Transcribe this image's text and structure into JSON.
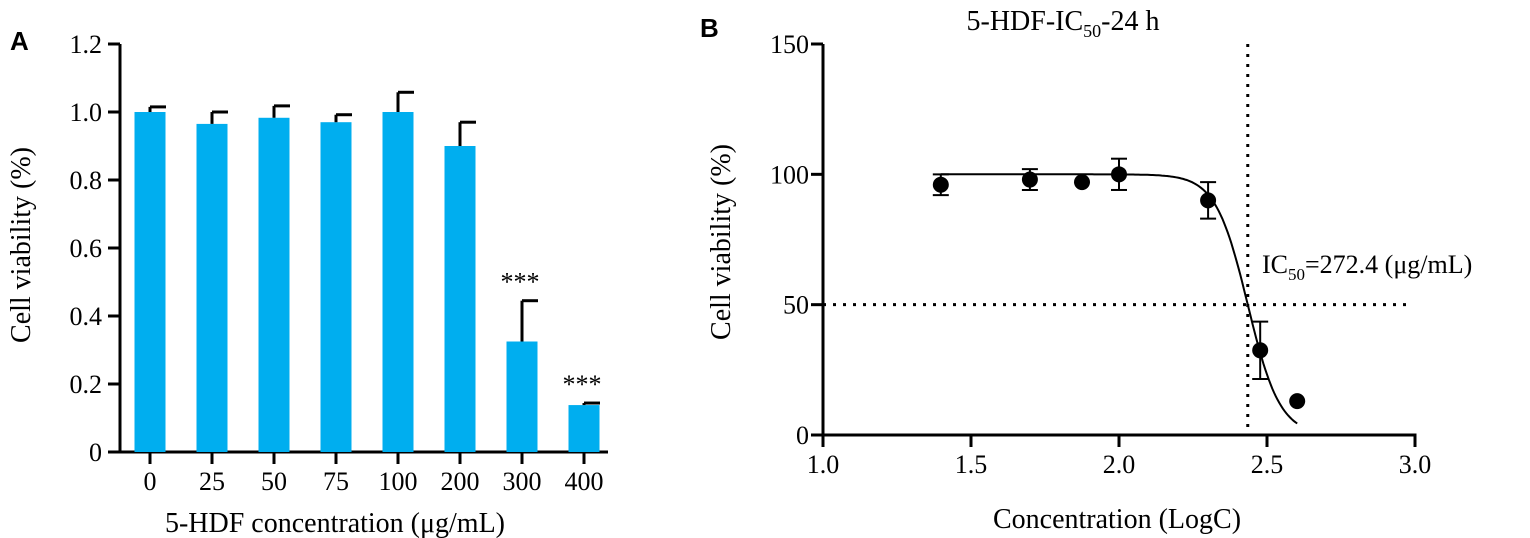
{
  "colors": {
    "bar": "#00AEEF",
    "axis": "#000000",
    "marker": "#000000"
  },
  "chart_data": [
    {
      "panel_label": "A",
      "type": "bar",
      "categories": [
        "0",
        "25",
        "50",
        "75",
        "100",
        "200",
        "300",
        "400"
      ],
      "values": [
        1.0,
        0.965,
        0.983,
        0.97,
        1.0,
        0.9,
        0.325,
        0.138
      ],
      "errors": [
        0.015,
        0.035,
        0.035,
        0.022,
        0.058,
        0.07,
        0.12,
        0.006
      ],
      "annotations": [
        "",
        "",
        "",
        "",
        "",
        "",
        "***",
        "***"
      ],
      "xlabel": "5-HDF concentration (μg/mL)",
      "ylabel": "Cell viability (%)",
      "ylim": [
        0,
        1.2
      ],
      "yticks": [
        "0",
        "0.2",
        "0.4",
        "0.6",
        "0.8",
        "1.0",
        "1.2"
      ],
      "grid": false
    },
    {
      "panel_label": "B",
      "type": "scatter",
      "title_main": "5-HDF-IC",
      "title_sub": "50",
      "title_tail": "-24 h",
      "x": [
        1.398,
        1.699,
        1.875,
        2.0,
        2.301,
        2.477,
        2.602
      ],
      "y": [
        96,
        98,
        97,
        100,
        90,
        32.5,
        13
      ],
      "errors": [
        4,
        4,
        0,
        6,
        7,
        11,
        0
      ],
      "fit": {
        "type": "four-parameter logistic",
        "top": 100,
        "bottom": 0,
        "log_ic50": 2.435,
        "hill": 8,
        "x_range": [
          1.398,
          2.602
        ]
      },
      "reference_lines": {
        "x": 2.435,
        "y": 50,
        "style": "dotted"
      },
      "annotation_main": "IC",
      "annotation_sub": "50",
      "annotation_tail": "=272.4 (μg/mL)",
      "xlabel": "Concentration (LogC)",
      "ylabel": "Cell viability (%)",
      "xlim": [
        1.0,
        3.0
      ],
      "ylim": [
        0,
        150
      ],
      "xticks": [
        "1.0",
        "1.5",
        "2.0",
        "2.5",
        "3.0"
      ],
      "yticks": [
        "0",
        "50",
        "100",
        "150"
      ],
      "grid": false
    }
  ]
}
